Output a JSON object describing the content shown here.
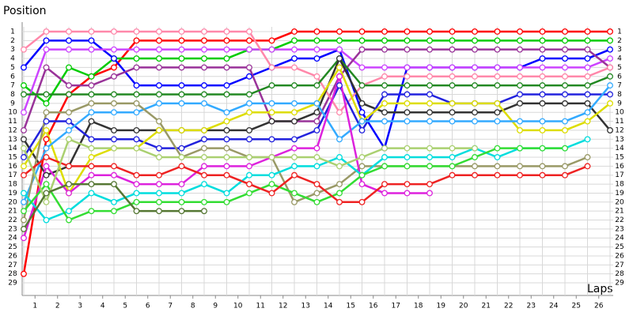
{
  "chart_data": {
    "type": "line",
    "y_label": "Position",
    "x_label": "Laps",
    "x": [
      0,
      1,
      2,
      3,
      4,
      5,
      6,
      7,
      8,
      9,
      10,
      11,
      12,
      13,
      14,
      15,
      16,
      17,
      18,
      19,
      20,
      21,
      22,
      23,
      24,
      25,
      26
    ],
    "xlim": [
      0,
      26
    ],
    "xticks": [
      {
        "value": 0.5,
        "label": "1"
      },
      {
        "value": 1.5,
        "label": "2"
      },
      {
        "value": 2.5,
        "label": "3"
      },
      {
        "value": 3.5,
        "label": "4"
      },
      {
        "value": 4.5,
        "label": "5"
      },
      {
        "value": 5.5,
        "label": "6"
      },
      {
        "value": 6.5,
        "label": "7"
      },
      {
        "value": 7.5,
        "label": "8"
      },
      {
        "value": 8.5,
        "label": "9"
      },
      {
        "value": 9.5,
        "label": "10"
      },
      {
        "value": 10.5,
        "label": "11"
      },
      {
        "value": 11.5,
        "label": "12"
      },
      {
        "value": 12.5,
        "label": "13"
      },
      {
        "value": 13.5,
        "label": "14"
      },
      {
        "value": 14.5,
        "label": "15"
      },
      {
        "value": 15.5,
        "label": "16"
      },
      {
        "value": 16.5,
        "label": "17"
      },
      {
        "value": 17.5,
        "label": "18"
      },
      {
        "value": 18.5,
        "label": "19"
      },
      {
        "value": 19.5,
        "label": "20"
      },
      {
        "value": 20.5,
        "label": "21"
      },
      {
        "value": 21.5,
        "label": "22"
      },
      {
        "value": 22.5,
        "label": "23"
      },
      {
        "value": 23.5,
        "label": "24"
      },
      {
        "value": 24.5,
        "label": "25"
      },
      {
        "value": 25.5,
        "label": "26"
      }
    ],
    "ylim": [
      30,
      0
    ],
    "yticks": [
      1,
      2,
      3,
      4,
      5,
      6,
      7,
      8,
      9,
      10,
      11,
      12,
      13,
      14,
      15,
      16,
      17,
      18,
      19,
      20,
      21,
      22,
      23,
      24,
      25,
      26,
      27,
      28,
      29
    ],
    "grid": true,
    "series": [
      {
        "color": "#ff0000",
        "values": [
          28,
          13,
          8,
          6,
          5,
          2,
          2,
          2,
          2,
          2,
          2,
          2,
          1,
          1,
          1,
          1,
          1,
          1,
          1,
          1,
          1,
          1,
          1,
          1,
          1,
          1,
          1
        ]
      },
      {
        "color": "#00cc00",
        "values": [
          7,
          9,
          5,
          6,
          4,
          4,
          4,
          4,
          4,
          4,
          3,
          3,
          2,
          2,
          2,
          2,
          2,
          2,
          2,
          2,
          2,
          2,
          2,
          2,
          2,
          2,
          2
        ]
      },
      {
        "color": "#0000ff",
        "values": [
          5,
          2,
          2,
          2,
          4,
          7,
          7,
          7,
          7,
          7,
          6,
          5,
          4,
          4,
          3,
          10,
          14,
          5,
          5,
          5,
          5,
          5,
          5,
          4,
          4,
          4,
          3
        ]
      },
      {
        "color": "#cc44ff",
        "values": [
          10,
          3,
          3,
          3,
          3,
          3,
          3,
          3,
          3,
          3,
          3,
          3,
          3,
          3,
          3,
          5,
          5,
          5,
          5,
          5,
          5,
          5,
          5,
          5,
          5,
          5,
          4
        ]
      },
      {
        "color": "#993399",
        "values": [
          12,
          5,
          7,
          7,
          6,
          5,
          5,
          5,
          5,
          5,
          5,
          11,
          11,
          11,
          6,
          3,
          3,
          3,
          3,
          3,
          3,
          3,
          3,
          3,
          3,
          3,
          5
        ]
      },
      {
        "color": "#ff88aa",
        "values": [
          3,
          1,
          1,
          1,
          1,
          1,
          1,
          1,
          1,
          1,
          1,
          5,
          5,
          6,
          10,
          7,
          6,
          6,
          6,
          6,
          6,
          6,
          6,
          6,
          6,
          6,
          5
        ]
      },
      {
        "color": "#228822",
        "values": [
          8,
          8,
          8,
          8,
          8,
          8,
          8,
          8,
          8,
          8,
          8,
          7,
          7,
          7,
          4,
          7,
          7,
          7,
          7,
          7,
          7,
          7,
          7,
          7,
          7,
          7,
          6
        ]
      },
      {
        "color": "#333333",
        "values": [
          13,
          17,
          16,
          11,
          12,
          12,
          12,
          12,
          12,
          12,
          12,
          11,
          11,
          10,
          4,
          9,
          10,
          10,
          10,
          10,
          10,
          10,
          9,
          9,
          9,
          9,
          12
        ]
      },
      {
        "color": "#2222dd",
        "values": [
          15,
          11,
          11,
          13,
          13,
          13,
          14,
          14,
          13,
          13,
          13,
          13,
          13,
          12,
          7,
          12,
          8,
          8,
          8,
          9,
          9,
          9,
          8,
          8,
          8,
          8,
          8
        ]
      },
      {
        "color": "#dddd00",
        "values": [
          16,
          12,
          19,
          15,
          14,
          14,
          12,
          12,
          12,
          11,
          10,
          10,
          10,
          9,
          5,
          11,
          9,
          9,
          9,
          9,
          9,
          9,
          12,
          12,
          12,
          11,
          9
        ]
      },
      {
        "color": "#33aaff",
        "values": [
          20,
          14,
          12,
          10,
          10,
          10,
          9,
          9,
          9,
          10,
          9,
          9,
          9,
          9,
          13,
          11,
          11,
          11,
          11,
          11,
          11,
          11,
          11,
          11,
          11,
          10,
          7
        ]
      },
      {
        "color": "#999966",
        "values": [
          22,
          10,
          10,
          9,
          9,
          9,
          11,
          15,
          14,
          14,
          15,
          15,
          20,
          19,
          18,
          16,
          16,
          16,
          16,
          16,
          16,
          16,
          16,
          16,
          16,
          15,
          null
        ]
      },
      {
        "color": "#dd22dd",
        "values": [
          24,
          16,
          19,
          17,
          17,
          18,
          18,
          18,
          16,
          16,
          16,
          15,
          14,
          14,
          6,
          18,
          19,
          19,
          19,
          null,
          null,
          null,
          null,
          null,
          null,
          null,
          null
        ]
      },
      {
        "color": "#00dddd",
        "values": [
          19,
          22,
          21,
          19,
          20,
          19,
          19,
          19,
          18,
          19,
          17,
          17,
          16,
          16,
          15,
          17,
          15,
          15,
          15,
          15,
          14,
          15,
          14,
          14,
          14,
          13,
          null
        ]
      },
      {
        "color": "#33dd33",
        "values": [
          21,
          18,
          22,
          21,
          21,
          20,
          20,
          20,
          20,
          20,
          19,
          18,
          19,
          20,
          19,
          17,
          16,
          16,
          16,
          16,
          15,
          14,
          14,
          14,
          14,
          null,
          null
        ]
      },
      {
        "color": "#ee2222",
        "values": [
          17,
          15,
          16,
          16,
          16,
          17,
          17,
          16,
          17,
          17,
          18,
          19,
          17,
          18,
          20,
          20,
          18,
          18,
          18,
          17,
          17,
          17,
          17,
          17,
          17,
          16,
          null
        ]
      },
      {
        "color": "#aad070",
        "values": [
          14,
          20,
          13,
          14,
          14,
          14,
          15,
          15,
          15,
          15,
          15,
          15,
          15,
          15,
          16,
          15,
          14,
          14,
          14,
          14,
          14,
          null,
          null,
          null,
          null,
          null,
          null
        ]
      },
      {
        "color": "#557733",
        "values": [
          23,
          19,
          18,
          18,
          18,
          21,
          21,
          21,
          21,
          null,
          null,
          null,
          null,
          null,
          null,
          null,
          null,
          null,
          null,
          null,
          null,
          null,
          null,
          null,
          null,
          null,
          null
        ]
      }
    ]
  }
}
